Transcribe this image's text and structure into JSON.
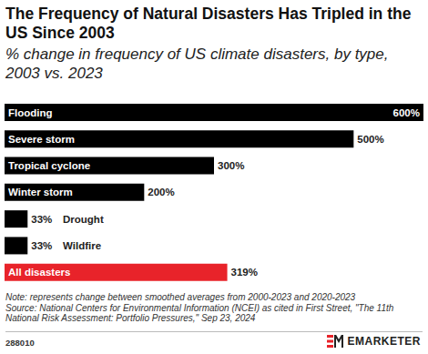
{
  "chart_data": {
    "type": "bar",
    "orientation": "horizontal",
    "title": "The Frequency of Natural Disasters Has Tripled in the US Since 2003",
    "subtitle": "% change in frequency of US climate disasters, by type, 2003 vs. 2023",
    "categories": [
      "Flooding",
      "Severe storm",
      "Tropical cyclone",
      "Winter storm",
      "Drought",
      "Wildfire",
      "All disasters"
    ],
    "values": [
      600,
      500,
      300,
      200,
      33,
      33,
      319
    ],
    "value_labels": [
      "600%",
      "500%",
      "300%",
      "200%",
      "33%",
      "33%",
      "319%"
    ],
    "colors": [
      "#000000",
      "#000000",
      "#000000",
      "#000000",
      "#000000",
      "#000000",
      "#e8232a"
    ],
    "xlim": [
      0,
      600
    ],
    "data_labels": true,
    "tick_labels": false,
    "note": "Note: represents change between smoothed averages from 2000-2023 and 2020-2023",
    "source": "Source: National Centers for Environmental Information (NCEI) as cited in First Street, \"The 11th National Risk Assessment: Portfolio Pressures,\" Sep 23, 2024",
    "chart_id": "288010",
    "brand": "EMARKETER"
  }
}
